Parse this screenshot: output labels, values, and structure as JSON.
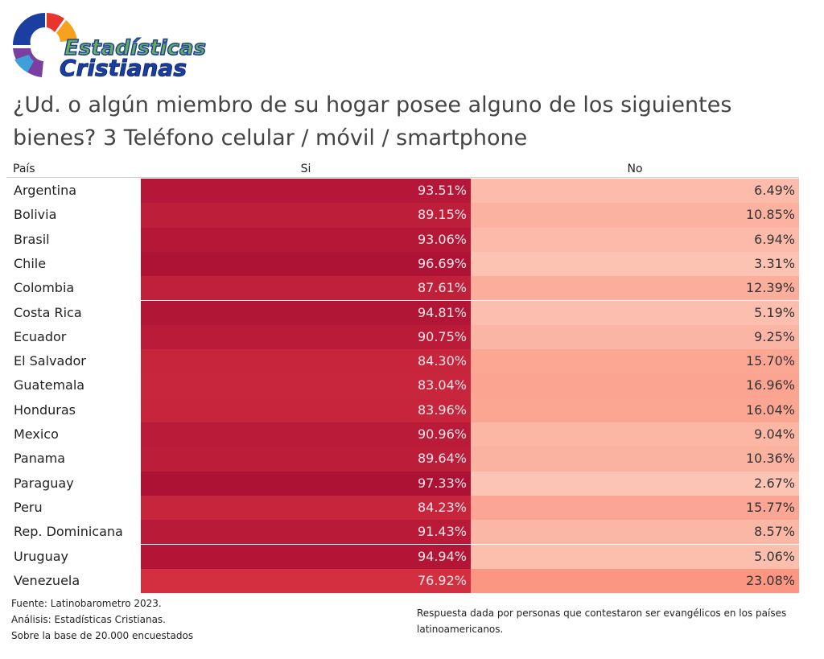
{
  "logo": {
    "line1": "Estadísticas",
    "line2": "Cristianas",
    "colors": [
      "#1a3fa0",
      "#e8352e",
      "#f6a21e",
      "#7a3fa0",
      "#6ab04c"
    ]
  },
  "title": {
    "line1": "¿Ud. o algún miembro de su hogar posee alguno de los siguientes",
    "line2": "bienes? 3   Teléfono celular / móvil / smartphone"
  },
  "chart_data": {
    "type": "table",
    "columns": [
      "País",
      "Si",
      "No"
    ],
    "rows": [
      {
        "country": "Argentina",
        "si": 93.51,
        "no": 6.49,
        "si_label": "93.51%",
        "no_label": "6.49%"
      },
      {
        "country": "Bolivia",
        "si": 89.15,
        "no": 10.85,
        "si_label": "89.15%",
        "no_label": "10.85%"
      },
      {
        "country": "Brasil",
        "si": 93.06,
        "no": 6.94,
        "si_label": "93.06%",
        "no_label": "6.94%"
      },
      {
        "country": "Chile",
        "si": 96.69,
        "no": 3.31,
        "si_label": "96.69%",
        "no_label": "3.31%"
      },
      {
        "country": "Colombia",
        "si": 87.61,
        "no": 12.39,
        "si_label": "87.61%",
        "no_label": "12.39%"
      },
      {
        "country": "Costa Rica",
        "si": 94.81,
        "no": 5.19,
        "si_label": "94.81%",
        "no_label": "5.19%"
      },
      {
        "country": "Ecuador",
        "si": 90.75,
        "no": 9.25,
        "si_label": "90.75%",
        "no_label": "9.25%"
      },
      {
        "country": "El Salvador",
        "si": 84.3,
        "no": 15.7,
        "si_label": "84.30%",
        "no_label": "15.70%"
      },
      {
        "country": "Guatemala",
        "si": 83.04,
        "no": 16.96,
        "si_label": "83.04%",
        "no_label": "16.96%"
      },
      {
        "country": "Honduras",
        "si": 83.96,
        "no": 16.04,
        "si_label": "83.96%",
        "no_label": "16.04%"
      },
      {
        "country": "Mexico",
        "si": 90.96,
        "no": 9.04,
        "si_label": "90.96%",
        "no_label": "9.04%"
      },
      {
        "country": "Panama",
        "si": 89.64,
        "no": 10.36,
        "si_label": "89.64%",
        "no_label": "10.36%"
      },
      {
        "country": "Paraguay",
        "si": 97.33,
        "no": 2.67,
        "si_label": "97.33%",
        "no_label": "2.67%"
      },
      {
        "country": "Peru",
        "si": 84.23,
        "no": 15.77,
        "si_label": "84.23%",
        "no_label": "15.77%"
      },
      {
        "country": "Rep. Dominicana",
        "si": 91.43,
        "no": 8.57,
        "si_label": "91.43%",
        "no_label": "8.57%"
      },
      {
        "country": "Uruguay",
        "si": 94.94,
        "no": 5.06,
        "si_label": "94.94%",
        "no_label": "5.06%"
      },
      {
        "country": "Venezuela",
        "si": 76.92,
        "no": 23.08,
        "si_label": "76.92%",
        "no_label": "23.08%"
      }
    ],
    "color_scale": {
      "si_low": "#d42f40",
      "si_high": "#ad1235",
      "no_low": "#fcc4b4",
      "no_high": "#fa9682"
    }
  },
  "footer": {
    "left": [
      "Fuente: Latinobarometro 2023.",
      "Análisis: Estadísticas Cristianas.",
      "Sobre la base de 20.000 encuestados"
    ],
    "right": "Respuesta dada por personas que contestaron ser evangélicos en los países latinoamericanos."
  }
}
